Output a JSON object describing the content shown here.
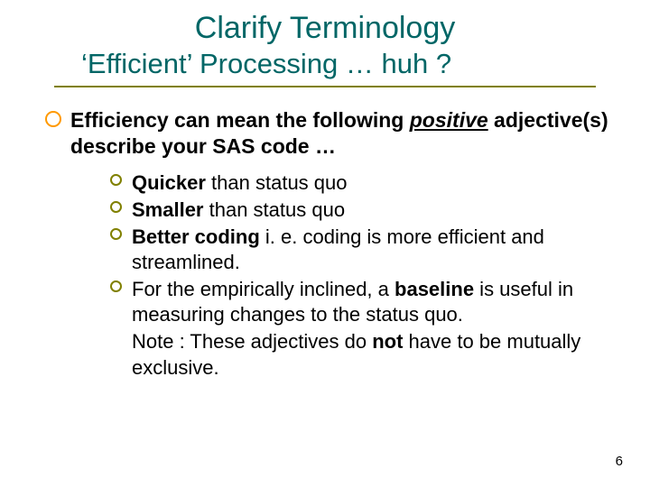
{
  "colors": {
    "title": "#006666",
    "subtitle": "#006666",
    "divider": "#808000",
    "body_text": "#000000",
    "level1_bullet_border": "#ff9900",
    "level2_bullet_border": "#808000",
    "page_number": "#000000",
    "background": "#ffffff"
  },
  "typography": {
    "title_fontsize": 34,
    "subtitle_fontsize": 31,
    "body_fontsize": 23,
    "sub_fontsize": 22,
    "pagenum_fontsize": 15
  },
  "title": "Clarify Terminology",
  "subtitle": "‘Efficient’ Processing … huh ?",
  "main_bullet": {
    "pre": "Efficiency can mean the following ",
    "emph": "positive",
    "post": " adjective(s) describe your SAS code …"
  },
  "sub_bullets": [
    {
      "bold": "Quicker",
      "rest": " than status quo"
    },
    {
      "bold": "Smaller",
      "rest": " than status quo"
    },
    {
      "bold": "Better coding",
      "rest": " i. e. coding is more efficient and streamlined."
    }
  ],
  "sub_bullet_baseline": {
    "pre": "For the empirically inclined, a ",
    "bold": "baseline",
    "post": " is useful in measuring changes to the status quo."
  },
  "note": {
    "pre": "Note : These adjectives do ",
    "bold": "not",
    "post": " have to be mutually exclusive."
  },
  "page_number": "6"
}
